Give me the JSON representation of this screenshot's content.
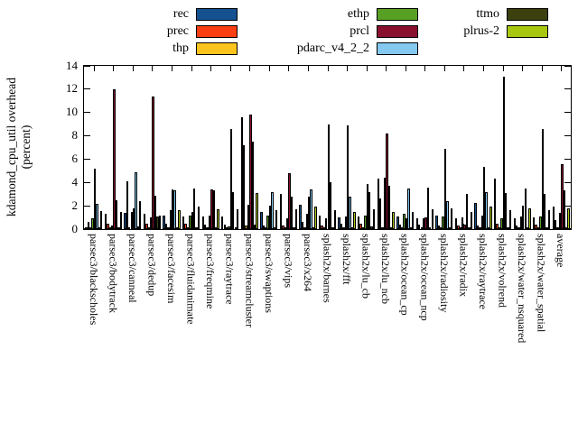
{
  "chart_data": {
    "type": "bar",
    "title": "",
    "ylabel_line1": "kdamond_cpu_util overhead",
    "ylabel_line2": "(percent)",
    "xlabel": "",
    "ylim": [
      0,
      14
    ],
    "ytick_step": 2,
    "grid": false,
    "legend_position": "top-center-3-columns",
    "background": "#ffffff",
    "axis_color": "#000000",
    "categories": [
      "parsec3/blackscholes",
      "parsec3/bodytrack",
      "parsec3/canneal",
      "parsec3/dedup",
      "parsec3/facesim",
      "parsec3/fluidanimate",
      "parsec3/freqmine",
      "parsec3/raytrace",
      "parsec3/streamcluster",
      "parsec3/swaptions",
      "parsec3/vips",
      "parsec3/x264",
      "splash2x/barnes",
      "splash2x/fft",
      "splash2x/lu_cb",
      "splash2x/lu_ncb",
      "splash2x/ocean_cp",
      "splash2x/ocean_ncp",
      "splash2x/radiosity",
      "splash2x/radix",
      "splash2x/raytrace",
      "splash2x/volrend",
      "splash2x/water_nsquared",
      "splash2x/water_spatial",
      "average"
    ],
    "series": [
      {
        "name": "rec",
        "color": "#15518f",
        "values": [
          0.1,
          1.3,
          1.4,
          1.3,
          1.2,
          1.05,
          1.1,
          1.1,
          9.6,
          1.5,
          3.0,
          2.1,
          1.15,
          1.0,
          1.1,
          4.35,
          1.05,
          0.9,
          1.15,
          0.95,
          2.25,
          4.3,
          0.95,
          1.0,
          1.9
        ]
      },
      {
        "name": "prec",
        "color": "#f93e12",
        "values": [
          0.6,
          0.45,
          4.1,
          0.5,
          0.45,
          0.45,
          0.4,
          0.35,
          7.2,
          0.3,
          0.3,
          0.6,
          0.3,
          0.45,
          0.45,
          2.65,
          0.4,
          0.35,
          0.3,
          0.3,
          0.3,
          0.45,
          0.3,
          0.35,
          0.8
        ]
      },
      {
        "name": "thp",
        "color": "#fcc41d",
        "values": [
          0.1,
          0.1,
          0.1,
          0.1,
          0.1,
          0.05,
          0.05,
          0.05,
          0.3,
          0.05,
          0.05,
          0.1,
          0.05,
          0.05,
          0.05,
          0.1,
          0.05,
          0.05,
          0.05,
          0.05,
          0.05,
          0.05,
          0.05,
          0.05,
          0.1
        ]
      },
      {
        "name": "ethp",
        "color": "#58a024",
        "values": [
          0.95,
          0.3,
          1.5,
          1.0,
          1.65,
          1.2,
          1.2,
          0.2,
          2.1,
          1.2,
          0.9,
          1.3,
          0.9,
          1.1,
          1.2,
          4.4,
          1.3,
          0.9,
          1.1,
          1.0,
          1.2,
          0.9,
          1.05,
          1.1,
          1.4
        ]
      },
      {
        "name": "prcl",
        "color": "#8a1030",
        "values": [
          5.2,
          12.0,
          1.8,
          11.4,
          3.4,
          1.5,
          3.4,
          8.6,
          9.8,
          2.0,
          4.8,
          2.8,
          9.0,
          8.9,
          3.9,
          8.2,
          0.9,
          1.0,
          6.9,
          0.4,
          5.3,
          13.1,
          2.0,
          8.6,
          5.6
        ]
      },
      {
        "name": "pdarc_v4_2_2",
        "color": "#85c8f0",
        "values": [
          2.2,
          2.45,
          4.9,
          2.9,
          3.3,
          3.5,
          3.3,
          3.2,
          7.5,
          3.2,
          2.8,
          3.4,
          4.0,
          2.8,
          3.2,
          3.7,
          3.5,
          3.55,
          2.4,
          3.0,
          3.2,
          3.1,
          3.45,
          3.0,
          3.3
        ]
      },
      {
        "name": "ttmo",
        "color": "#3b400e",
        "values": [
          0.1,
          0.1,
          0.2,
          1.1,
          0.1,
          0.1,
          0.1,
          0.1,
          0.4,
          0.1,
          0.1,
          0.1,
          0.1,
          0.1,
          0.2,
          0.1,
          0.1,
          0.1,
          0.1,
          0.15,
          0.1,
          0.1,
          0.1,
          0.1,
          0.15
        ]
      },
      {
        "name": "plrus-2",
        "color": "#a8c80f",
        "values": [
          1.55,
          1.5,
          2.4,
          1.2,
          1.6,
          1.9,
          1.7,
          1.7,
          3.1,
          1.6,
          1.7,
          1.9,
          1.6,
          1.5,
          1.7,
          1.45,
          1.5,
          1.7,
          1.75,
          1.5,
          1.9,
          1.6,
          1.8,
          1.65,
          1.8
        ]
      }
    ],
    "legend_columns": [
      [
        "rec",
        "prec",
        "thp"
      ],
      [
        "ethp",
        "prcl",
        "pdarc_v4_2_2"
      ],
      [
        "ttmo",
        "plrus-2"
      ]
    ]
  }
}
